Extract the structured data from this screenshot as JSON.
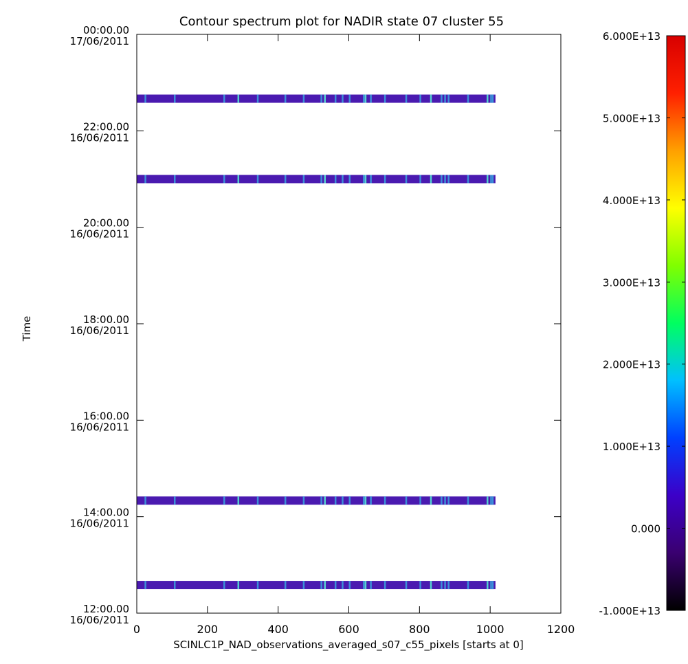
{
  "chart_data": {
    "type": "heatmap",
    "title": "Contour spectrum plot for NADIR state 07 cluster 55",
    "xlabel": "SCINLC1P_NAD_observations_averaged_s07_c55_pixels [starts at 0]",
    "ylabel": "Time",
    "xlim": [
      0,
      1200
    ],
    "x_ticks": [
      "0",
      "200",
      "400",
      "600",
      "800",
      "1000",
      "1200"
    ],
    "y_axis": {
      "range_hours_label": "12:00.00 16/06/2011 to 00:00.00 17/06/2011",
      "ticks": [
        {
          "time": "12:00.00",
          "date": "16/06/2011"
        },
        {
          "time": "14:00.00",
          "date": "16/06/2011"
        },
        {
          "time": "16:00.00",
          "date": "16/06/2011"
        },
        {
          "time": "18:00.00",
          "date": "16/06/2011"
        },
        {
          "time": "20:00.00",
          "date": "16/06/2011"
        },
        {
          "time": "22:00.00",
          "date": "16/06/2011"
        },
        {
          "time": "00:00.00",
          "date": "17/06/2011"
        }
      ]
    },
    "colorbar": {
      "range": [
        -10000000000000.0,
        60000000000000.0
      ],
      "tick_labels": [
        "-1.000E+13",
        "0.000",
        "1.000E+13",
        "2.000E+13",
        "3.000E+13",
        "4.000E+13",
        "5.000E+13",
        "6.000E+13"
      ],
      "tick_values": [
        -10000000000000.0,
        0,
        10000000000000.0,
        20000000000000.0,
        30000000000000.0,
        40000000000000.0,
        50000000000000.0,
        60000000000000.0
      ],
      "colors": [
        "#000000",
        "#3a0070",
        "#3c00c8",
        "#0040ff",
        "#00c0ff",
        "#00ff60",
        "#80ff00",
        "#ffff00",
        "#ffa000",
        "#ff2000",
        "#d80000"
      ]
    },
    "observations": [
      {
        "time": "12:35",
        "x_start": 0,
        "x_end": 1015
      },
      {
        "time": "14:20",
        "x_start": 0,
        "x_end": 1015
      },
      {
        "time": "21:00",
        "x_start": 0,
        "x_end": 1015
      },
      {
        "time": "22:40",
        "x_start": 0,
        "x_end": 1015
      }
    ],
    "stripe_colors": {
      "base": "#4a1ab0",
      "highlight": "#3b8fd8",
      "bright": "#55d0d0"
    },
    "highlight_pixels": [
      22,
      105,
      245,
      285,
      340,
      418,
      470,
      520,
      530,
      560,
      580,
      600,
      640,
      645,
      660,
      700,
      760,
      800,
      830,
      860,
      870,
      880,
      935,
      990,
      1000,
      1005
    ]
  }
}
